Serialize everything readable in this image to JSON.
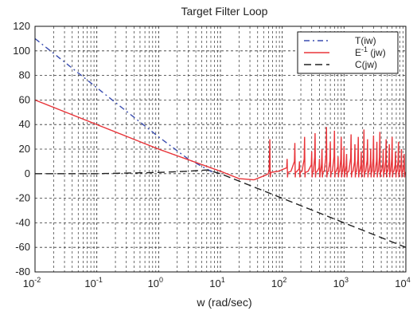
{
  "chart_data": {
    "type": "line",
    "title": "Target Filter Loop",
    "xlabel": "w (rad/sec)",
    "ylabel": "",
    "xscale": "log",
    "xlim": [
      0.01,
      10000
    ],
    "ylim": [
      -80,
      120
    ],
    "grid": true,
    "legend_position": "top-right",
    "x_ticks": [
      {
        "base": "10",
        "exp": "-2",
        "value": 0.01
      },
      {
        "base": "10",
        "exp": "-1",
        "value": 0.1
      },
      {
        "base": "10",
        "exp": "0",
        "value": 1
      },
      {
        "base": "10",
        "exp": "1",
        "value": 10
      },
      {
        "base": "10",
        "exp": "2",
        "value": 100
      },
      {
        "base": "10",
        "exp": "3",
        "value": 1000
      },
      {
        "base": "10",
        "exp": "4",
        "value": 10000
      }
    ],
    "y_ticks": [
      "120",
      "100",
      "80",
      "60",
      "40",
      "20",
      "0",
      "-20",
      "-40",
      "-60",
      "-80"
    ],
    "y_tick_values": [
      120,
      100,
      80,
      60,
      40,
      20,
      0,
      -20,
      -40,
      -60,
      -80
    ],
    "series": [
      {
        "name": "T(iw)",
        "color": "#3a4db0",
        "style": "dash-dot",
        "x": [
          0.01,
          0.1,
          1,
          3,
          7,
          10
        ],
        "y": [
          110,
          70,
          30,
          12,
          2,
          0
        ]
      },
      {
        "name_base": "E",
        "name_sup": "-1",
        "name_suffix": " (jw)",
        "color": "#e8353a",
        "style": "solid",
        "x": [
          0.01,
          0.1,
          1,
          10,
          20,
          35,
          55
        ],
        "y": [
          60,
          40,
          20,
          2,
          -4,
          -5,
          -1
        ],
        "resonance_start": 60,
        "resonance_end": 10000,
        "resonance_baseline": 0
      },
      {
        "name": "C(jw)",
        "color": "#222222",
        "style": "dashed",
        "x": [
          0.01,
          0.1,
          1,
          3,
          6,
          10,
          100,
          1000,
          10000
        ],
        "y": [
          0,
          0,
          1,
          2,
          3,
          0,
          -20,
          -40,
          -60
        ]
      }
    ]
  }
}
